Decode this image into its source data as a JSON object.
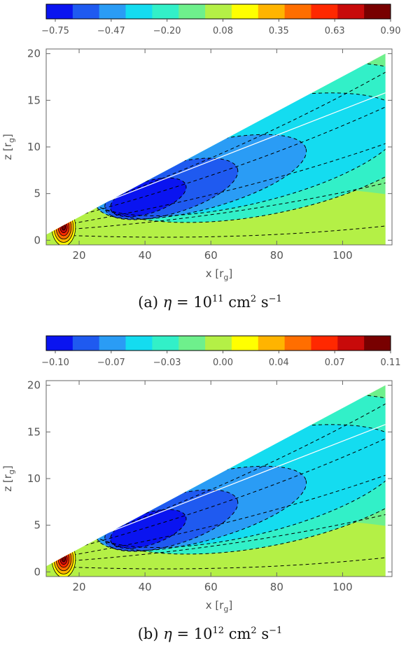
{
  "colors": [
    "#0a14f0",
    "#1f5af0",
    "#2a9cf5",
    "#14dcf0",
    "#32f0c8",
    "#6ef08c",
    "#b4f046",
    "#ffff00",
    "#ffb400",
    "#ff6e00",
    "#ff2800",
    "#c80a0a",
    "#780000"
  ],
  "chart_data": [
    {
      "type": "heatmap",
      "panel_label": "(a)",
      "colorbar_ticks": [
        "−0.75",
        "−0.47",
        "−0.20",
        "0.08",
        "0.35",
        "0.63",
        "0.90"
      ],
      "colorbar_range": [
        -0.89,
        0.9
      ],
      "xlabel": "x",
      "xlabel_unit": "r",
      "xlabel_sub": "g",
      "ylabel": "z",
      "ylabel_unit": "r",
      "ylabel_sub": "g",
      "x_ticks": [
        "20",
        "40",
        "60",
        "80",
        "100"
      ],
      "y_ticks": [
        "0",
        "5",
        "10",
        "15",
        "20"
      ],
      "xlim": [
        10,
        115
      ],
      "ylim": [
        -0.5,
        20.5
      ],
      "disk_top_line": {
        "x": [
          10,
          113
        ],
        "z": [
          0.6,
          20
        ]
      },
      "white_line": {
        "x": [
          20,
          113
        ],
        "z": [
          3.0,
          15.8
        ]
      },
      "caption": {
        "prefix": "(a) ",
        "symbol": "η",
        "eq": " = 10",
        "exp": "11",
        "units_a": " cm",
        "exp2": "2",
        "units_b": " s",
        "exp3": "−1"
      }
    },
    {
      "type": "heatmap",
      "panel_label": "(b)",
      "colorbar_ticks": [
        "−0.10",
        "−0.07",
        "−0.03",
        "0.00",
        "0.04",
        "0.07",
        "0.11"
      ],
      "colorbar_range": [
        -0.115,
        0.11
      ],
      "xlabel": "x",
      "xlabel_unit": "r",
      "xlabel_sub": "g",
      "ylabel": "z",
      "ylabel_unit": "r",
      "ylabel_sub": "g",
      "x_ticks": [
        "20",
        "40",
        "60",
        "80",
        "100"
      ],
      "y_ticks": [
        "0",
        "5",
        "10",
        "15",
        "20"
      ],
      "xlim": [
        10,
        115
      ],
      "ylim": [
        -0.5,
        20.5
      ],
      "disk_top_line": {
        "x": [
          10,
          113
        ],
        "z": [
          0.6,
          20
        ]
      },
      "white_line": {
        "x": [
          20,
          113
        ],
        "z": [
          3.0,
          15.8
        ]
      },
      "caption": {
        "prefix": "(b) ",
        "symbol": "η",
        "eq": " = 10",
        "exp": "12",
        "units_a": " cm",
        "exp2": "2",
        "units_b": " s",
        "exp3": "−1"
      }
    }
  ]
}
